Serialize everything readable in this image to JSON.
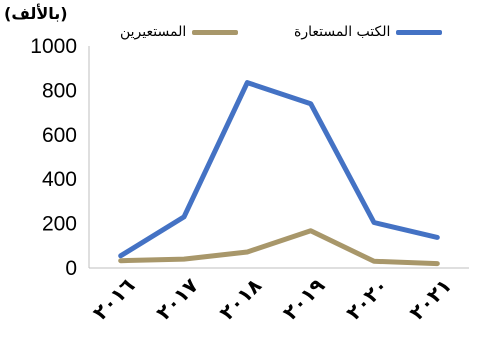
{
  "chart_data": {
    "type": "line",
    "unit_label": "(بالألف)",
    "categories": [
      "٢٠١٦",
      "٢٠١٧",
      "٢٠١٨",
      "٢٠١٩",
      "٢٠٢٠",
      "٢٠٢١"
    ],
    "series": [
      {
        "name": "الكتب المستعارة",
        "color": "#4472C4",
        "values": [
          55,
          230,
          835,
          740,
          205,
          138
        ]
      },
      {
        "name": "المستعيرين",
        "color": "#A8976A",
        "values": [
          33,
          40,
          72,
          168,
          30,
          20
        ]
      }
    ],
    "yticks": [
      "0",
      "200",
      "400",
      "600",
      "800",
      "1000"
    ],
    "ylim": [
      0,
      1000
    ],
    "grid": false,
    "legend_position": "top"
  }
}
